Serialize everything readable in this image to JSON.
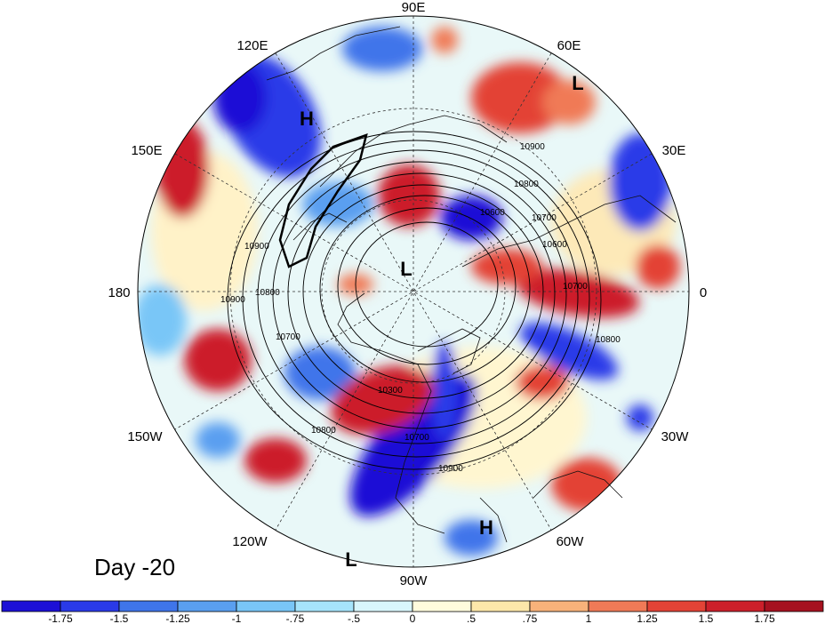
{
  "title": "Day -20",
  "longitude_labels": {
    "top": "90E",
    "top_right": "60E",
    "right_upper": "30E",
    "right": "0",
    "right_lower": "30W",
    "bottom_right": "60W",
    "bottom": "90W",
    "bottom_left": "120W",
    "left_lower": "150W",
    "left": "180",
    "left_upper": "150E",
    "top_left": "120E"
  },
  "pressure_centers": [
    {
      "label": "H",
      "region": "east-asia"
    },
    {
      "label": "L",
      "region": "north-pole"
    },
    {
      "label": "L",
      "region": "russia"
    },
    {
      "label": "H",
      "region": "caribbean"
    },
    {
      "label": "L",
      "region": "east-pacific"
    }
  ],
  "contour_labels": [
    "10900",
    "10800",
    "10700",
    "10600",
    "10300",
    "10900",
    "10800",
    "10700",
    "10600",
    "10900",
    "10800",
    "10700",
    "10800",
    "10700",
    "10900"
  ],
  "colorbar": {
    "ticks": [
      "-1.75",
      "-1.5",
      "-1.25",
      "-1",
      "-.75",
      "-.5",
      "0",
      ".5",
      ".75",
      "1",
      "1.25",
      "1.5",
      "1.75"
    ],
    "colors": [
      "#1c10d6",
      "#2a3ae8",
      "#3f75ea",
      "#5a9ff0",
      "#79c6f7",
      "#a6e4fb",
      "#d9f6fc",
      "#fffcdd",
      "#fde7aa",
      "#f8b27a",
      "#f07a57",
      "#e34336",
      "#cc1f2a",
      "#a6111f"
    ]
  }
}
